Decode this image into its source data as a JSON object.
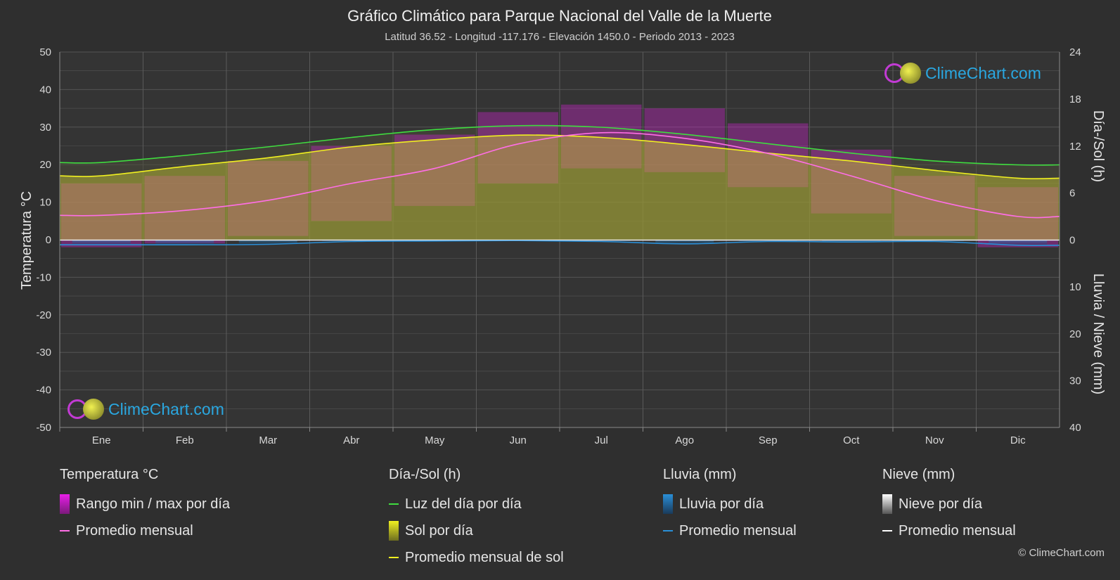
{
  "title": "Gráfico Climático para Parque Nacional del Valle de la Muerte",
  "subtitle": "Latitud 36.52 - Longitud -117.176 - Elevación 1450.0 - Periodo 2013 - 2023",
  "logo_text": "ClimeChart.com",
  "copyright": "© ClimeChart.com",
  "colors": {
    "background": "#2f2f2f",
    "temp_range": "#e81ee8",
    "temp_avg": "#ff6ee6",
    "daylight": "#3fdc3f",
    "sun": "#c8c832",
    "sun_avg": "#f0f020",
    "rain": "#2a8fd8",
    "rain_avg": "#2a8fd8",
    "snow": "#cfcfcf",
    "snow_avg": "#ffffff"
  },
  "legend": {
    "temperature": {
      "header": "Temperatura °C",
      "range_label": "Rango min / max por día",
      "avg_label": "Promedio mensual"
    },
    "sun": {
      "header": "Día-/Sol (h)",
      "daylight_label": "Luz del día por día",
      "sun_label": "Sol por día",
      "sun_avg_label": "Promedio mensual de sol"
    },
    "rain": {
      "header": "Lluvia (mm)",
      "rain_label": "Lluvia por día",
      "avg_label": "Promedio mensual"
    },
    "snow": {
      "header": "Nieve (mm)",
      "snow_label": "Nieve por día",
      "avg_label": "Promedio mensual"
    }
  },
  "chart_data": {
    "type": "line",
    "categories": [
      "Ene",
      "Feb",
      "Mar",
      "Abr",
      "May",
      "Jun",
      "Jul",
      "Ago",
      "Sep",
      "Oct",
      "Nov",
      "Dic"
    ],
    "y_left": {
      "label": "Temperatura °C",
      "range": [
        -50,
        50
      ],
      "ticks": [
        50,
        40,
        30,
        20,
        10,
        0,
        -10,
        -20,
        -30,
        -40,
        -50
      ]
    },
    "y_right_top": {
      "label": "Día-/Sol (h)",
      "range": [
        0,
        24
      ],
      "ticks": [
        24,
        18,
        12,
        6,
        0
      ]
    },
    "y_right_bottom": {
      "label": "Lluvia / Nieve (mm)",
      "range": [
        0,
        40
      ],
      "ticks": [
        0,
        10,
        20,
        30,
        40
      ]
    },
    "series": [
      {
        "name": "Luz del día por día",
        "axis": "hours",
        "values": [
          9.9,
          10.8,
          11.9,
          13.1,
          14.1,
          14.6,
          14.4,
          13.5,
          12.3,
          11.1,
          10.1,
          9.6
        ]
      },
      {
        "name": "Promedio mensual de sol",
        "axis": "hours",
        "values": [
          8.2,
          9.4,
          10.5,
          11.9,
          12.8,
          13.4,
          13.1,
          12.2,
          11.1,
          10.1,
          8.9,
          7.9
        ]
      },
      {
        "name": "Promedio mensual",
        "axis": "temperature",
        "values": [
          6.5,
          7.8,
          10.5,
          15.0,
          19.0,
          25.5,
          28.5,
          27.0,
          23.0,
          17.0,
          10.5,
          6.2
        ]
      },
      {
        "name": "Rango min / max por día",
        "axis": "temperature",
        "min": [
          -2,
          -1,
          1,
          5,
          9,
          15,
          19,
          18,
          14,
          7,
          1,
          -2
        ],
        "max": [
          15,
          17,
          21,
          25,
          28,
          34,
          36,
          35,
          31,
          24,
          17,
          14
        ]
      },
      {
        "name": "Lluvia promedio mensual",
        "axis": "precip",
        "values": [
          1.0,
          1.0,
          0.9,
          0.3,
          0.2,
          0.1,
          0.3,
          0.8,
          0.3,
          0.4,
          0.3,
          1.1
        ]
      },
      {
        "name": "Nieve promedio mensual",
        "axis": "precip",
        "values": [
          0,
          0,
          0,
          0,
          0,
          0,
          0,
          0,
          0,
          0,
          0,
          0
        ]
      }
    ]
  }
}
